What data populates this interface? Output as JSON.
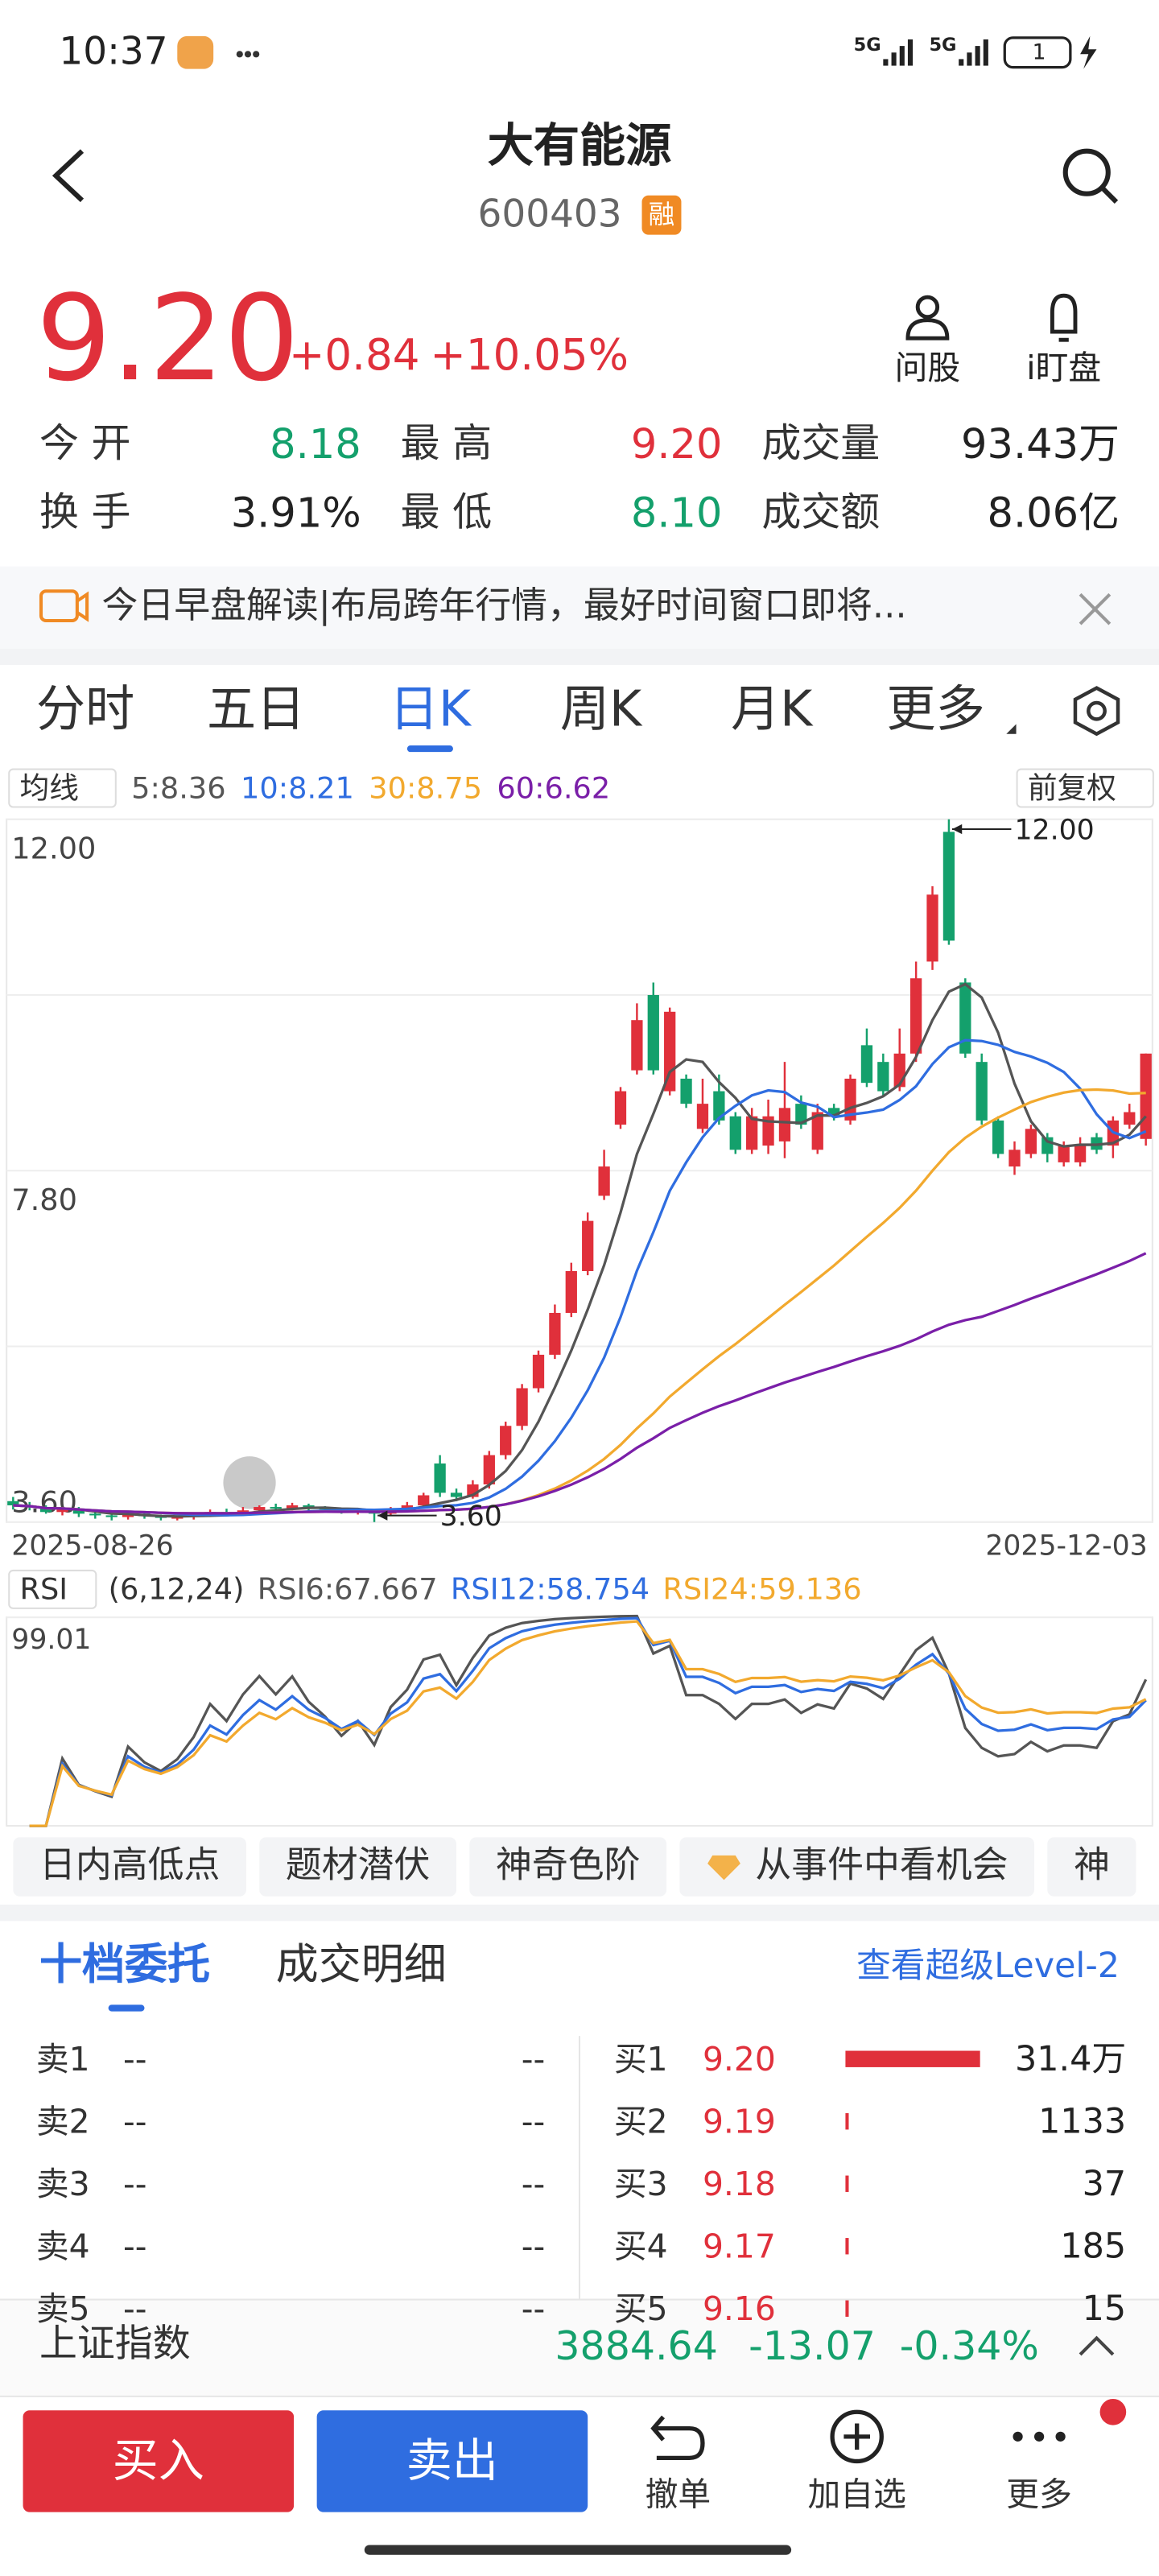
{
  "status_bar": {
    "time": "10:37",
    "networks": [
      "5G",
      "5G"
    ],
    "battery": "1"
  },
  "header": {
    "title": "大有能源",
    "code": "600403",
    "badge": "融"
  },
  "quote": {
    "price": "9.20",
    "change": "+0.84",
    "change_pct": "+10.05%",
    "actions": [
      "问股",
      "i盯盘"
    ],
    "stats": [
      {
        "label": "今 开",
        "value": "8.18",
        "color": "green"
      },
      {
        "label": "最 高",
        "value": "9.20",
        "color": "red"
      },
      {
        "label": "成交量",
        "value": "93.43万",
        "color": "dark"
      },
      {
        "label": "换 手",
        "value": "3.91%",
        "color": "dark"
      },
      {
        "label": "最 低",
        "value": "8.10",
        "color": "green"
      },
      {
        "label": "成交额",
        "value": "8.06亿",
        "color": "dark"
      }
    ]
  },
  "banner": {
    "text": "今日早盘解读|布局跨年行情，最好时间窗口即将..."
  },
  "chart_tabs": {
    "items": [
      "分时",
      "五日",
      "日K",
      "周K",
      "月K",
      "更多"
    ],
    "active": 2
  },
  "kline": {
    "ma_toggle": "均线",
    "adjust": "前复权",
    "ma": [
      {
        "label": "5:8.36",
        "period": 5,
        "color": "#555555"
      },
      {
        "label": "10:8.21",
        "period": 10,
        "color": "#2f6de0"
      },
      {
        "label": "30:8.75",
        "period": 30,
        "color": "#f2a92e"
      },
      {
        "label": "60:6.62",
        "period": 60,
        "color": "#7a1fa8"
      }
    ],
    "ylim": [
      3.6,
      12
    ],
    "yticks": [
      {
        "value": 12,
        "label": "12.00"
      },
      {
        "value": 7.8,
        "label": "7.80"
      },
      {
        "value": 3.6,
        "label": "3.60"
      }
    ],
    "x_start": "2025-08-26",
    "x_end": "2025-12-03",
    "up_color": "#e0303b",
    "down_color": "#14a06c",
    "high_note": {
      "index": 57,
      "value": 12,
      "label": "12.00"
    },
    "low_note": {
      "index": 22,
      "value": 3.6,
      "label": "3.60"
    },
    "candles": [
      [
        3.85,
        3.8,
        3.9,
        3.75
      ],
      [
        3.8,
        3.78,
        3.84,
        3.74
      ],
      [
        3.78,
        3.72,
        3.8,
        3.7
      ],
      [
        3.72,
        3.75,
        3.78,
        3.68
      ],
      [
        3.75,
        3.7,
        3.78,
        3.66
      ],
      [
        3.7,
        3.68,
        3.73,
        3.64
      ],
      [
        3.68,
        3.66,
        3.7,
        3.62
      ],
      [
        3.66,
        3.7,
        3.72,
        3.63
      ],
      [
        3.7,
        3.67,
        3.72,
        3.64
      ],
      [
        3.67,
        3.65,
        3.69,
        3.62
      ],
      [
        3.65,
        3.66,
        3.68,
        3.62
      ],
      [
        3.66,
        3.68,
        3.7,
        3.63
      ],
      [
        3.68,
        3.72,
        3.75,
        3.66
      ],
      [
        3.72,
        3.7,
        3.76,
        3.68
      ],
      [
        3.7,
        3.74,
        3.78,
        3.68
      ],
      [
        3.74,
        3.78,
        3.8,
        3.72
      ],
      [
        3.78,
        3.76,
        3.82,
        3.73
      ],
      [
        3.76,
        3.8,
        3.83,
        3.74
      ],
      [
        3.8,
        3.77,
        3.82,
        3.74
      ],
      [
        3.77,
        3.75,
        3.79,
        3.72
      ],
      [
        3.75,
        3.72,
        3.77,
        3.7
      ],
      [
        3.72,
        3.74,
        3.76,
        3.69
      ],
      [
        3.74,
        3.7,
        3.75,
        3.6
      ],
      [
        3.7,
        3.76,
        3.78,
        3.68
      ],
      [
        3.76,
        3.8,
        3.84,
        3.74
      ],
      [
        3.8,
        3.92,
        3.95,
        3.78
      ],
      [
        4.3,
        3.95,
        4.4,
        3.9
      ],
      [
        3.95,
        3.9,
        4.0,
        3.85
      ],
      [
        3.9,
        4.05,
        4.1,
        3.88
      ],
      [
        4.05,
        4.4,
        4.45,
        4.0
      ],
      [
        4.4,
        4.75,
        4.8,
        4.35
      ],
      [
        4.75,
        5.2,
        5.25,
        4.7
      ],
      [
        5.2,
        5.6,
        5.65,
        5.15
      ],
      [
        5.6,
        6.1,
        6.2,
        5.55
      ],
      [
        6.1,
        6.6,
        6.7,
        6.05
      ],
      [
        6.6,
        7.2,
        7.3,
        6.55
      ],
      [
        7.5,
        7.85,
        8.05,
        7.45
      ],
      [
        8.35,
        8.75,
        8.8,
        8.3
      ],
      [
        9.0,
        9.6,
        9.8,
        8.95
      ],
      [
        9.9,
        9.0,
        10.05,
        8.95
      ],
      [
        8.75,
        9.7,
        9.75,
        8.7
      ],
      [
        8.9,
        8.6,
        8.95,
        8.55
      ],
      [
        8.3,
        8.6,
        8.9,
        8.25
      ],
      [
        8.75,
        8.4,
        8.95,
        8.35
      ],
      [
        8.45,
        8.05,
        8.5,
        8.0
      ],
      [
        8.05,
        8.45,
        8.55,
        8.0
      ],
      [
        8.1,
        8.45,
        8.65,
        8.0
      ],
      [
        8.15,
        8.55,
        9.1,
        7.95
      ],
      [
        8.6,
        8.35,
        8.7,
        8.3
      ],
      [
        8.05,
        8.5,
        8.6,
        8.0
      ],
      [
        8.55,
        8.45,
        8.6,
        8.4
      ],
      [
        8.4,
        8.9,
        8.95,
        8.35
      ],
      [
        9.3,
        8.85,
        9.5,
        8.8
      ],
      [
        9.1,
        8.75,
        9.2,
        8.7
      ],
      [
        8.8,
        9.2,
        9.5,
        8.75
      ],
      [
        9.2,
        10.1,
        10.3,
        9.1
      ],
      [
        10.3,
        11.1,
        11.2,
        10.2
      ],
      [
        11.85,
        10.55,
        12.0,
        10.5
      ],
      [
        10.05,
        9.2,
        10.1,
        9.15
      ],
      [
        9.1,
        8.4,
        9.2,
        8.35
      ],
      [
        8.4,
        8.0,
        8.45,
        7.95
      ],
      [
        7.85,
        8.05,
        8.15,
        7.75
      ],
      [
        8.0,
        8.3,
        8.35,
        7.95
      ],
      [
        8.2,
        8.0,
        8.25,
        7.9
      ],
      [
        7.9,
        8.1,
        8.15,
        7.85
      ],
      [
        7.9,
        8.1,
        8.2,
        7.85
      ],
      [
        8.2,
        8.05,
        8.25,
        8.0
      ],
      [
        8.1,
        8.4,
        8.45,
        7.95
      ],
      [
        8.35,
        8.5,
        8.6,
        8.3
      ],
      [
        8.18,
        9.2,
        9.2,
        8.1
      ]
    ]
  },
  "rsi": {
    "toggle": "RSI",
    "params": "(6,12,24)",
    "ylim": [
      0,
      99.01
    ],
    "yticks": [
      99.01
    ],
    "lines": [
      {
        "label": "RSI6:67.667",
        "period": 6,
        "color": "#555555"
      },
      {
        "label": "RSI12:58.754",
        "period": 12,
        "color": "#2f6de0"
      },
      {
        "label": "RSI24:59.136",
        "period": 24,
        "color": "#f2a92e"
      }
    ]
  },
  "chips": [
    {
      "text": "日内高低点"
    },
    {
      "text": "题材潜伏"
    },
    {
      "text": "神奇色阶"
    },
    {
      "text": "从事件中看机会",
      "icon": "diamond"
    },
    {
      "text": "神"
    }
  ],
  "order_book": {
    "tabs": [
      "十档委托",
      "成交明细"
    ],
    "active": 0,
    "level2": "查看超级Level-2",
    "sell": [
      {
        "label": "卖1",
        "price": "--",
        "volume": "--"
      },
      {
        "label": "卖2",
        "price": "--",
        "volume": "--"
      },
      {
        "label": "卖3",
        "price": "--",
        "volume": "--"
      },
      {
        "label": "卖4",
        "price": "--",
        "volume": "--"
      },
      {
        "label": "卖5",
        "price": "--",
        "volume": "--"
      }
    ],
    "buy": [
      {
        "label": "买1",
        "price": "9.20",
        "volume": 314000,
        "volume_label": "31.4万"
      },
      {
        "label": "买2",
        "price": "9.19",
        "volume": 1133
      },
      {
        "label": "买3",
        "price": "9.18",
        "volume": 37
      },
      {
        "label": "买4",
        "price": "9.17",
        "volume": 185
      },
      {
        "label": "买5",
        "price": "9.16",
        "volume": 15
      }
    ]
  },
  "index_bar": {
    "name": "上证指数",
    "value": "3884.64",
    "change": "-13.07",
    "change_pct": "-0.34%"
  },
  "bottom_bar": {
    "buy": "买入",
    "sell": "卖出",
    "items": [
      "撤单",
      "加自选",
      "更多"
    ]
  }
}
